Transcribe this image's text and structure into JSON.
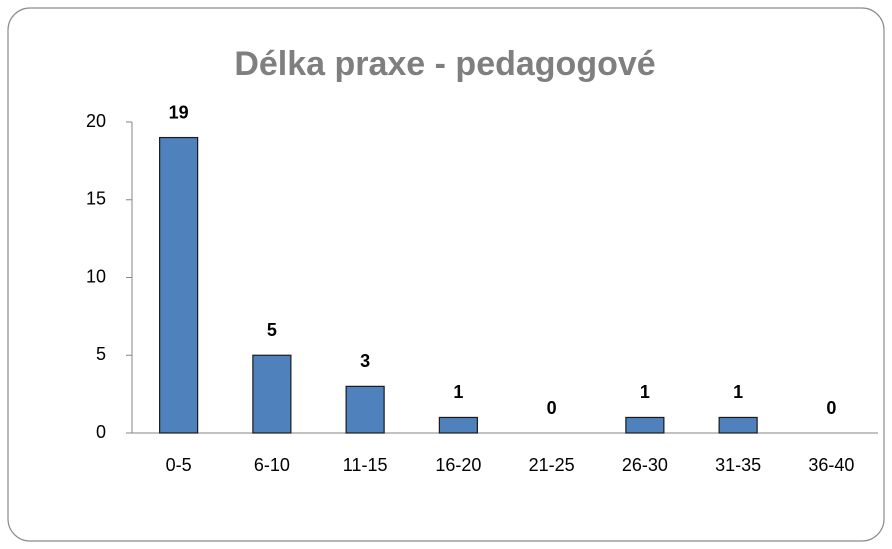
{
  "chart_data": {
    "type": "bar",
    "title": "Délka praxe - pedagogové",
    "categories": [
      "0-5",
      "6-10",
      "11-15",
      "16-20",
      "21-25",
      "26-30",
      "31-35",
      "36-40"
    ],
    "values": [
      19,
      5,
      3,
      1,
      0,
      1,
      1,
      0
    ],
    "color": "#4f81bd",
    "ylim": [
      0,
      20
    ],
    "yticks": [
      0,
      5,
      10,
      15,
      20
    ],
    "grid": false
  }
}
